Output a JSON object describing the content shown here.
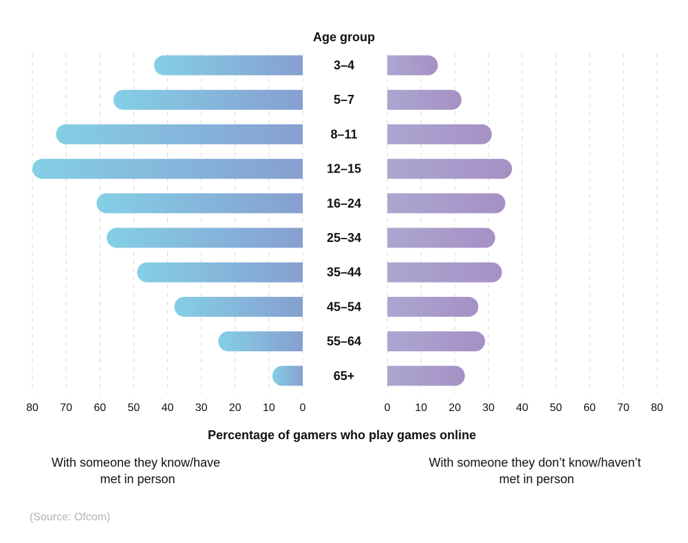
{
  "chart_data": {
    "type": "bar",
    "center_label": "Age group",
    "xlabel": "Percentage of gamers who play games online",
    "categories": [
      "3–4",
      "5–7",
      "8–11",
      "12–15",
      "16–24",
      "25–34",
      "35–44",
      "45–54",
      "55–64",
      "65+"
    ],
    "series": [
      {
        "name": "With someone they know/have met in person",
        "values": [
          44,
          56,
          73,
          80,
          61,
          58,
          49,
          38,
          25,
          9
        ]
      },
      {
        "name": "With someone they don’t know/haven’t met in person",
        "values": [
          15,
          22,
          31,
          37,
          35,
          32,
          34,
          27,
          29,
          23
        ]
      }
    ],
    "xlim": [
      0,
      80
    ],
    "ticks": [
      80,
      70,
      60,
      50,
      40,
      30,
      20,
      10,
      0
    ],
    "ticks_right": [
      0,
      10,
      20,
      30,
      40,
      50,
      60,
      70,
      80
    ],
    "grid": "dashed vertical",
    "colors": {
      "left_start": "#84cfe6",
      "left_end": "#869fd0",
      "right_start": "#aba7d1",
      "right_end": "#a690c4",
      "grid": "#d7d7d7"
    }
  },
  "legend": {
    "left_line1": "With someone they know/have",
    "left_line2": "met in person",
    "right_line1": "With someone they don’t know/haven’t",
    "right_line2": "met in person"
  },
  "source": "(Source: Ofcom)"
}
